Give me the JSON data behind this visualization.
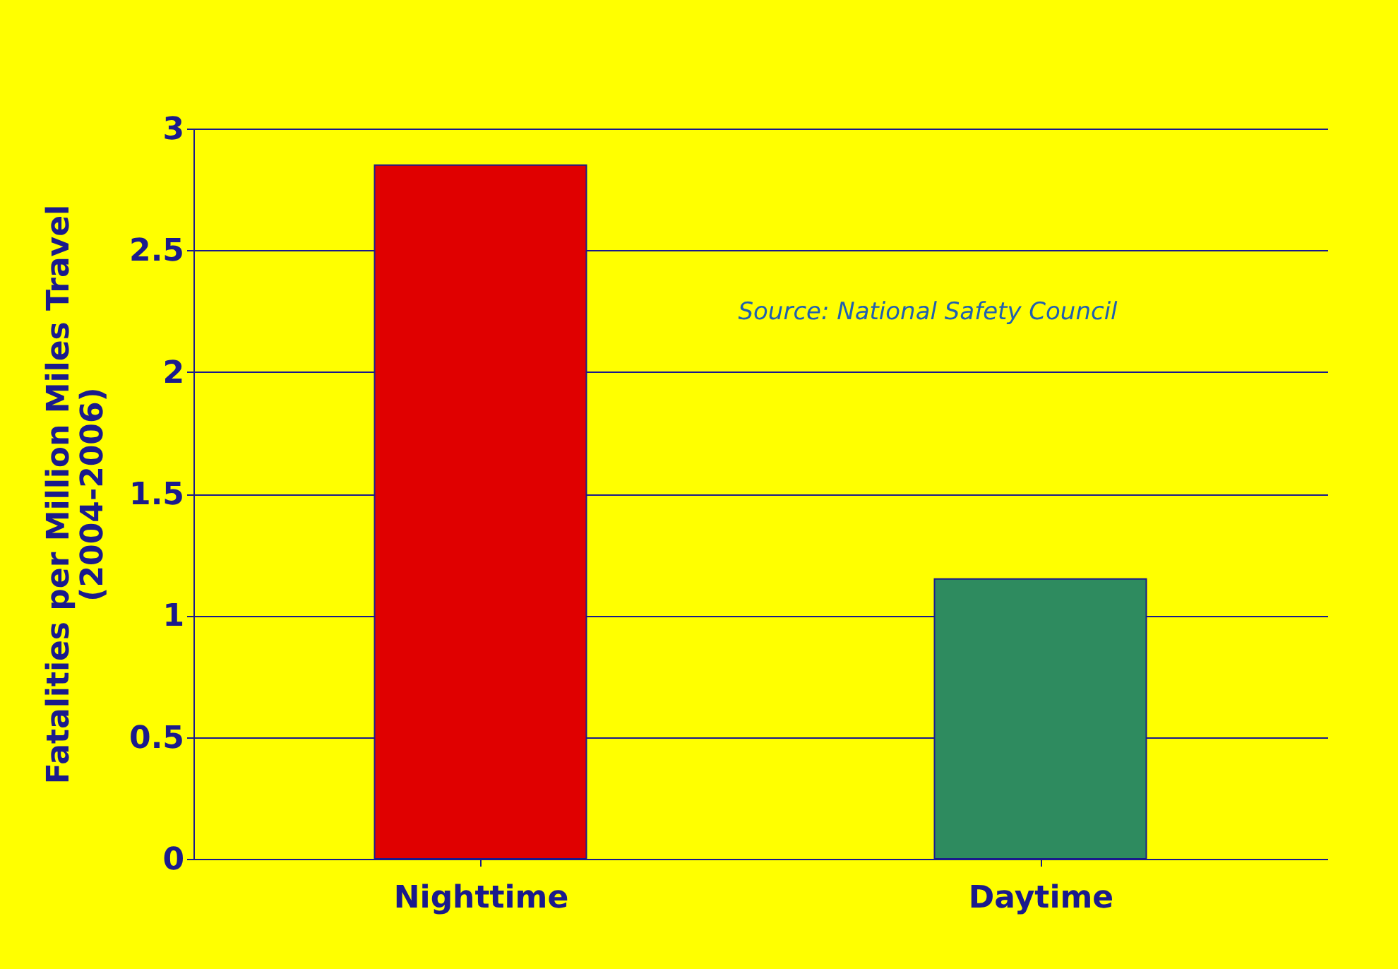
{
  "chart_data": {
    "type": "bar",
    "ylabel": "Fatalities per Million Miles Travel\n(2004-2006)",
    "categories": [
      "Nighttime",
      "Daytime"
    ],
    "values": [
      2.85,
      1.15
    ],
    "colors": [
      "#e00000",
      "#2e8b5f"
    ],
    "ylim": [
      0,
      3
    ],
    "yticks": [
      0,
      0.5,
      1,
      1.5,
      2,
      2.5,
      3
    ],
    "grid": "y",
    "annotations": [
      "Source: National Safety Council"
    ]
  }
}
